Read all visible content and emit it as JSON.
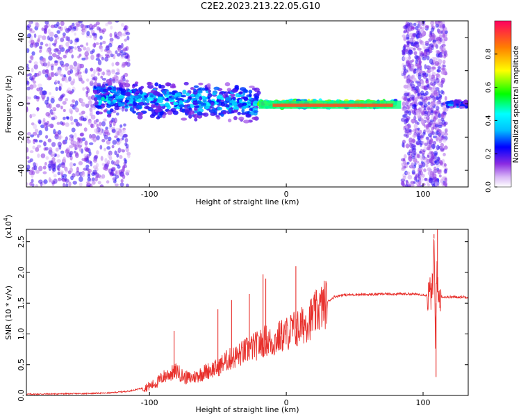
{
  "title": "C2E2.2023.213.22.05.G10",
  "chart_data": [
    {
      "type": "heatmap",
      "xlabel": "Height of straight line (km)",
      "ylabel": "Frequency (Hz)",
      "xlim": [
        -190,
        133
      ],
      "ylim": [
        -50,
        50
      ],
      "xticks": [
        -100,
        0,
        100
      ],
      "yticks": [
        -40,
        -20,
        0,
        20,
        40
      ],
      "colorbar": {
        "label": "Normalized spectral amplitude",
        "range": [
          0,
          1
        ],
        "ticks": [
          0.0,
          0.2,
          0.4,
          0.6,
          0.8
        ]
      },
      "features": [
        {
          "x": [
            -190,
            -115
          ],
          "y": [
            -50,
            50
          ],
          "amplitude": 0.15
        },
        {
          "x": [
            -140,
            -20
          ],
          "y": [
            -10,
            10
          ],
          "amplitude": 0.35
        },
        {
          "x": [
            -20,
            80
          ],
          "y": [
            -2,
            2
          ],
          "amplitude": 0.8
        },
        {
          "x": [
            85,
            117
          ],
          "y": [
            -50,
            50
          ],
          "amplitude": 0.15
        },
        {
          "x": [
            118,
            133
          ],
          "y": [
            -2,
            2
          ],
          "amplitude": 0.3
        }
      ]
    },
    {
      "type": "line",
      "xlabel": "Height of straight line (km)",
      "ylabel": "SNR (10 * v/v)",
      "scale_label": "(x10",
      "scale_exp": "4",
      "scale_close": ")",
      "xlim": [
        -190,
        133
      ],
      "ylim": [
        0,
        2.7
      ],
      "xticks": [
        -100,
        0,
        100
      ],
      "yticks": [
        0.0,
        0.5,
        1.0,
        1.5,
        2.0,
        2.5
      ],
      "series": [
        {
          "color": "#e8302c",
          "x": [
            -190,
            -150,
            -130,
            -115,
            -105,
            -100,
            -95,
            -90,
            -85,
            -80,
            -75,
            -70,
            -65,
            -60,
            -55,
            -50,
            -45,
            -40,
            -35,
            -30,
            -25,
            -20,
            -15,
            -10,
            -5,
            0,
            5,
            10,
            15,
            20,
            25,
            30,
            35,
            40,
            50,
            60,
            70,
            80,
            90,
            100,
            104,
            107,
            108,
            109,
            110,
            111,
            112,
            115,
            120,
            133
          ],
          "y": [
            0.02,
            0.03,
            0.04,
            0.07,
            0.12,
            0.15,
            0.2,
            0.3,
            0.35,
            0.4,
            0.3,
            0.28,
            0.32,
            0.38,
            0.42,
            0.45,
            0.55,
            0.6,
            0.65,
            0.72,
            0.78,
            0.82,
            0.9,
            0.85,
            0.95,
            1.0,
            1.08,
            1.1,
            1.2,
            1.3,
            1.42,
            1.52,
            1.6,
            1.63,
            1.64,
            1.64,
            1.65,
            1.65,
            1.65,
            1.64,
            1.62,
            1.7,
            2.55,
            0.8,
            2.2,
            1.55,
            1.62,
            1.6,
            1.6,
            1.6
          ]
        }
      ],
      "spikes": [
        {
          "x": -82,
          "y": 1.05
        },
        {
          "x": -50,
          "y": 1.4
        },
        {
          "x": -40,
          "y": 1.55
        },
        {
          "x": -27,
          "y": 1.65
        },
        {
          "x": -17,
          "y": 1.97
        },
        {
          "x": -15,
          "y": 1.9
        },
        {
          "x": 7,
          "y": 2.1
        },
        {
          "x": 8,
          "y": 0.8
        },
        {
          "x": 108,
          "y": 2.62
        },
        {
          "x": 109.5,
          "y": 0.3
        },
        {
          "x": 110.5,
          "y": 2.7
        }
      ]
    }
  ]
}
